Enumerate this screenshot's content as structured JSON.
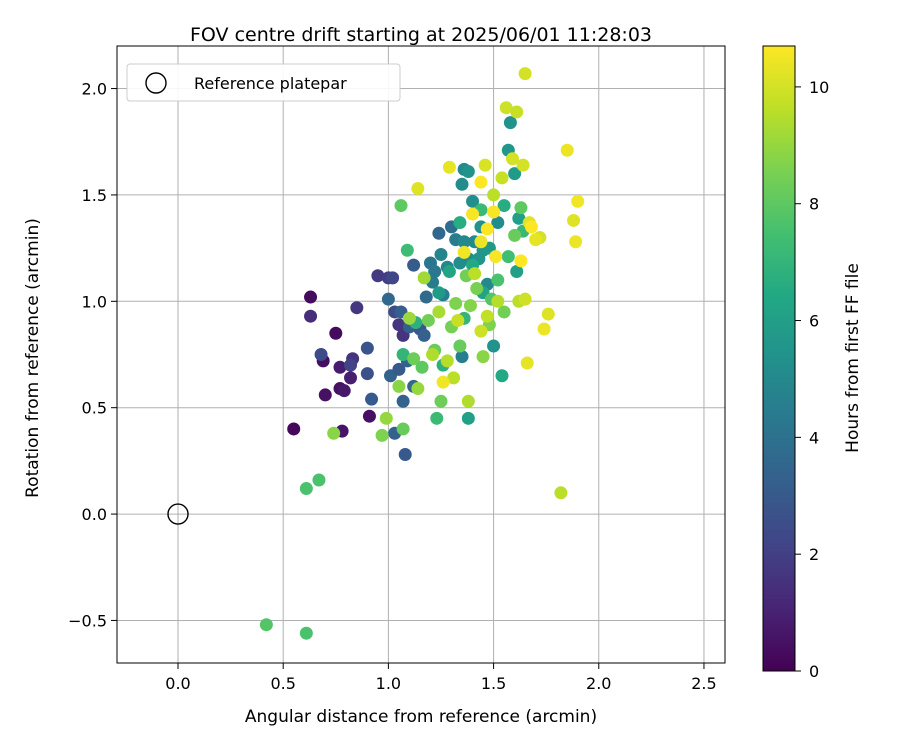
{
  "chart_data": {
    "type": "scatter",
    "title": "FOV centre drift starting at 2025/06/01 11:28:03",
    "xlabel": "Angular distance from reference (arcmin)",
    "ylabel": "Rotation from reference (arcmin)",
    "xlim": [
      -0.29,
      2.6
    ],
    "ylim": [
      -0.7,
      2.2
    ],
    "xticks": [
      0.0,
      0.5,
      1.0,
      1.5,
      2.0,
      2.5
    ],
    "xtick_labels": [
      "0.0",
      "0.5",
      "1.0",
      "1.5",
      "2.0",
      "2.5"
    ],
    "yticks": [
      -0.5,
      0.0,
      0.5,
      1.0,
      1.5,
      2.0
    ],
    "ytick_labels": [
      "−0.5",
      "0.0",
      "0.5",
      "1.0",
      "1.5",
      "2.0"
    ],
    "grid": true,
    "legend": {
      "placement": "top-left",
      "entries": [
        "Reference platepar"
      ]
    },
    "reference_point": {
      "x": 0.0,
      "y": 0.0
    },
    "colorbar": {
      "label": "Hours from first FF file",
      "colormap": "viridis",
      "range": [
        0,
        10.7
      ],
      "ticks": [
        0,
        2,
        4,
        6,
        8,
        10
      ],
      "tick_labels": [
        "0",
        "2",
        "4",
        "6",
        "8",
        "10"
      ]
    },
    "points": [
      [
        0.55,
        0.4,
        0.2
      ],
      [
        0.63,
        1.02,
        0.3
      ],
      [
        0.7,
        0.56,
        0.5
      ],
      [
        0.69,
        0.72,
        0.4
      ],
      [
        0.75,
        0.85,
        0.3
      ],
      [
        0.78,
        0.39,
        0.6
      ],
      [
        0.77,
        0.59,
        0.5
      ],
      [
        0.79,
        0.58,
        0.7
      ],
      [
        0.77,
        0.69,
        0.8
      ],
      [
        0.82,
        0.64,
        0.9
      ],
      [
        0.91,
        0.46,
        0.5
      ],
      [
        0.63,
        0.93,
        1.4
      ],
      [
        0.68,
        0.75,
        2.4
      ],
      [
        0.83,
        0.73,
        1.6
      ],
      [
        0.85,
        0.97,
        1.7
      ],
      [
        0.82,
        0.7,
        2.1
      ],
      [
        0.9,
        0.66,
        2.6
      ],
      [
        0.9,
        0.78,
        2.8
      ],
      [
        0.95,
        1.12,
        1.8
      ],
      [
        0.92,
        0.54,
        3.0
      ],
      [
        1.0,
        1.11,
        1.9
      ],
      [
        1.02,
        1.11,
        2.2
      ],
      [
        1.03,
        0.95,
        2.4
      ],
      [
        1.05,
        0.89,
        1.6
      ],
      [
        1.07,
        0.84,
        1.6
      ],
      [
        1.08,
        0.28,
        3.0
      ],
      [
        1.03,
        0.38,
        3.3
      ],
      [
        1.01,
        0.65,
        3.4
      ],
      [
        1.05,
        0.68,
        3.0
      ],
      [
        1.0,
        1.01,
        3.6
      ],
      [
        1.06,
        0.95,
        3.2
      ],
      [
        1.09,
        0.72,
        3.4
      ],
      [
        1.1,
        0.88,
        3.2
      ],
      [
        1.07,
        0.53,
        3.4
      ],
      [
        1.12,
        1.17,
        3.1
      ],
      [
        1.15,
        0.87,
        2.9
      ],
      [
        1.17,
        0.84,
        3.3
      ],
      [
        1.12,
        0.6,
        3.5
      ],
      [
        1.2,
        1.18,
        4.2
      ],
      [
        1.18,
        1.02,
        3.7
      ],
      [
        1.21,
        1.09,
        4.4
      ],
      [
        1.22,
        1.14,
        4.3
      ],
      [
        1.24,
        1.32,
        3.5
      ],
      [
        1.25,
        1.22,
        4.8
      ],
      [
        1.26,
        1.03,
        4.6
      ],
      [
        1.28,
        1.16,
        4.9
      ],
      [
        1.3,
        1.35,
        3.8
      ],
      [
        1.32,
        1.29,
        4.4
      ],
      [
        1.34,
        1.18,
        5.2
      ],
      [
        1.35,
        0.74,
        4.6
      ],
      [
        1.36,
        1.28,
        5.0
      ],
      [
        1.38,
        1.2,
        5.1
      ],
      [
        1.4,
        1.47,
        5.3
      ],
      [
        1.41,
        1.28,
        5.0
      ],
      [
        1.43,
        1.2,
        5.5
      ],
      [
        1.44,
        1.35,
        5.4
      ],
      [
        1.45,
        1.24,
        5.6
      ],
      [
        1.47,
        1.08,
        5.0
      ],
      [
        1.48,
        1.25,
        5.7
      ],
      [
        1.5,
        0.79,
        5.4
      ],
      [
        1.52,
        1.37,
        5.1
      ],
      [
        1.35,
        1.55,
        5.2
      ],
      [
        1.36,
        1.62,
        5.0
      ],
      [
        1.38,
        1.61,
        5.4
      ],
      [
        1.57,
        1.71,
        5.6
      ],
      [
        1.58,
        1.84,
        5.4
      ],
      [
        1.6,
        1.6,
        5.8
      ],
      [
        1.61,
        1.14,
        6.0
      ],
      [
        1.38,
        0.45,
        6.0
      ],
      [
        1.54,
        0.65,
        6.4
      ],
      [
        1.45,
        1.04,
        6.2
      ],
      [
        1.55,
        1.45,
        6.6
      ],
      [
        1.62,
        1.39,
        6.0
      ],
      [
        1.24,
        1.04,
        5.8
      ],
      [
        1.29,
        1.14,
        6.3
      ],
      [
        1.34,
        1.37,
        6.6
      ],
      [
        1.4,
        1.17,
        6.4
      ],
      [
        1.13,
        0.9,
        6.8
      ],
      [
        1.07,
        0.75,
        7.0
      ],
      [
        1.26,
        0.7,
        6.8
      ],
      [
        1.23,
        0.45,
        7.2
      ],
      [
        1.09,
        1.24,
        7.3
      ],
      [
        1.36,
        0.92,
        7.0
      ],
      [
        1.44,
        1.43,
        7.2
      ],
      [
        1.57,
        1.21,
        7.4
      ],
      [
        1.52,
        1.1,
        7.6
      ],
      [
        1.49,
        1.01,
        7.8
      ],
      [
        1.64,
        1.33,
        7.1
      ],
      [
        0.61,
        0.12,
        7.6
      ],
      [
        0.67,
        0.16,
        7.6
      ],
      [
        0.42,
        -0.52,
        7.8
      ],
      [
        0.61,
        -0.56,
        7.6
      ],
      [
        1.06,
        1.45,
        8.0
      ],
      [
        1.07,
        0.4,
        8.2
      ],
      [
        1.12,
        0.73,
        8.3
      ],
      [
        1.16,
        0.69,
        8.0
      ],
      [
        1.19,
        0.91,
        8.4
      ],
      [
        1.22,
        0.77,
        8.2
      ],
      [
        1.25,
        0.53,
        8.3
      ],
      [
        1.3,
        0.88,
        8.5
      ],
      [
        1.32,
        0.99,
        8.6
      ],
      [
        1.34,
        0.79,
        8.2
      ],
      [
        1.37,
        1.12,
        8.4
      ],
      [
        1.39,
        0.98,
        8.7
      ],
      [
        1.42,
        1.06,
        8.5
      ],
      [
        1.45,
        0.74,
        8.8
      ],
      [
        1.48,
        0.89,
        8.6
      ],
      [
        1.55,
        0.95,
        8.4
      ],
      [
        1.6,
        1.31,
        8.2
      ],
      [
        1.63,
        1.44,
        8.0
      ],
      [
        0.74,
        0.38,
        8.8
      ],
      [
        0.97,
        0.37,
        8.6
      ],
      [
        0.99,
        0.45,
        9.0
      ],
      [
        1.05,
        0.6,
        8.8
      ],
      [
        1.1,
        0.92,
        9.1
      ],
      [
        1.14,
        0.59,
        9.0
      ],
      [
        1.17,
        1.11,
        9.2
      ],
      [
        1.21,
        0.75,
        9.4
      ],
      [
        1.24,
        0.95,
        9.3
      ],
      [
        1.28,
        0.72,
        9.5
      ],
      [
        1.31,
        0.64,
        9.6
      ],
      [
        1.33,
        0.91,
        9.8
      ],
      [
        1.38,
        0.53,
        9.4
      ],
      [
        1.41,
        1.13,
        9.6
      ],
      [
        1.44,
        0.86,
        9.9
      ],
      [
        1.47,
        0.93,
        9.7
      ],
      [
        1.52,
        1.0,
        9.5
      ],
      [
        1.5,
        1.5,
        9.6
      ],
      [
        1.54,
        1.58,
        9.8
      ],
      [
        1.56,
        1.91,
        9.9
      ],
      [
        1.59,
        1.67,
        10.0
      ],
      [
        1.61,
        1.89,
        9.8
      ],
      [
        1.64,
        1.64,
        10.0
      ],
      [
        1.65,
        2.07,
        10.0
      ],
      [
        1.62,
        1.0,
        9.6
      ],
      [
        1.65,
        1.01,
        9.9
      ],
      [
        1.67,
        1.37,
        10.2
      ],
      [
        1.72,
        1.3,
        10.0
      ],
      [
        1.7,
        1.29,
        10.3
      ],
      [
        1.74,
        0.87,
        10.4
      ],
      [
        1.76,
        0.94,
        10.2
      ],
      [
        1.66,
        0.71,
        10.3
      ],
      [
        1.82,
        0.1,
        9.6
      ],
      [
        1.85,
        1.71,
        10.4
      ],
      [
        1.88,
        1.38,
        10.2
      ],
      [
        1.89,
        1.28,
        10.4
      ],
      [
        1.9,
        1.47,
        10.5
      ],
      [
        1.14,
        1.53,
        10.2
      ],
      [
        1.29,
        1.63,
        10.3
      ],
      [
        1.36,
        1.23,
        10.5
      ],
      [
        1.4,
        1.41,
        10.6
      ],
      [
        1.44,
        1.56,
        10.7
      ],
      [
        1.47,
        1.34,
        10.7
      ],
      [
        1.5,
        1.42,
        10.6
      ],
      [
        1.26,
        0.62,
        10.5
      ],
      [
        1.44,
        1.28,
        10.4
      ],
      [
        1.51,
        1.21,
        10.6
      ],
      [
        1.63,
        1.19,
        10.7
      ],
      [
        1.68,
        1.35,
        10.7
      ],
      [
        1.46,
        1.64,
        10.1
      ]
    ]
  }
}
